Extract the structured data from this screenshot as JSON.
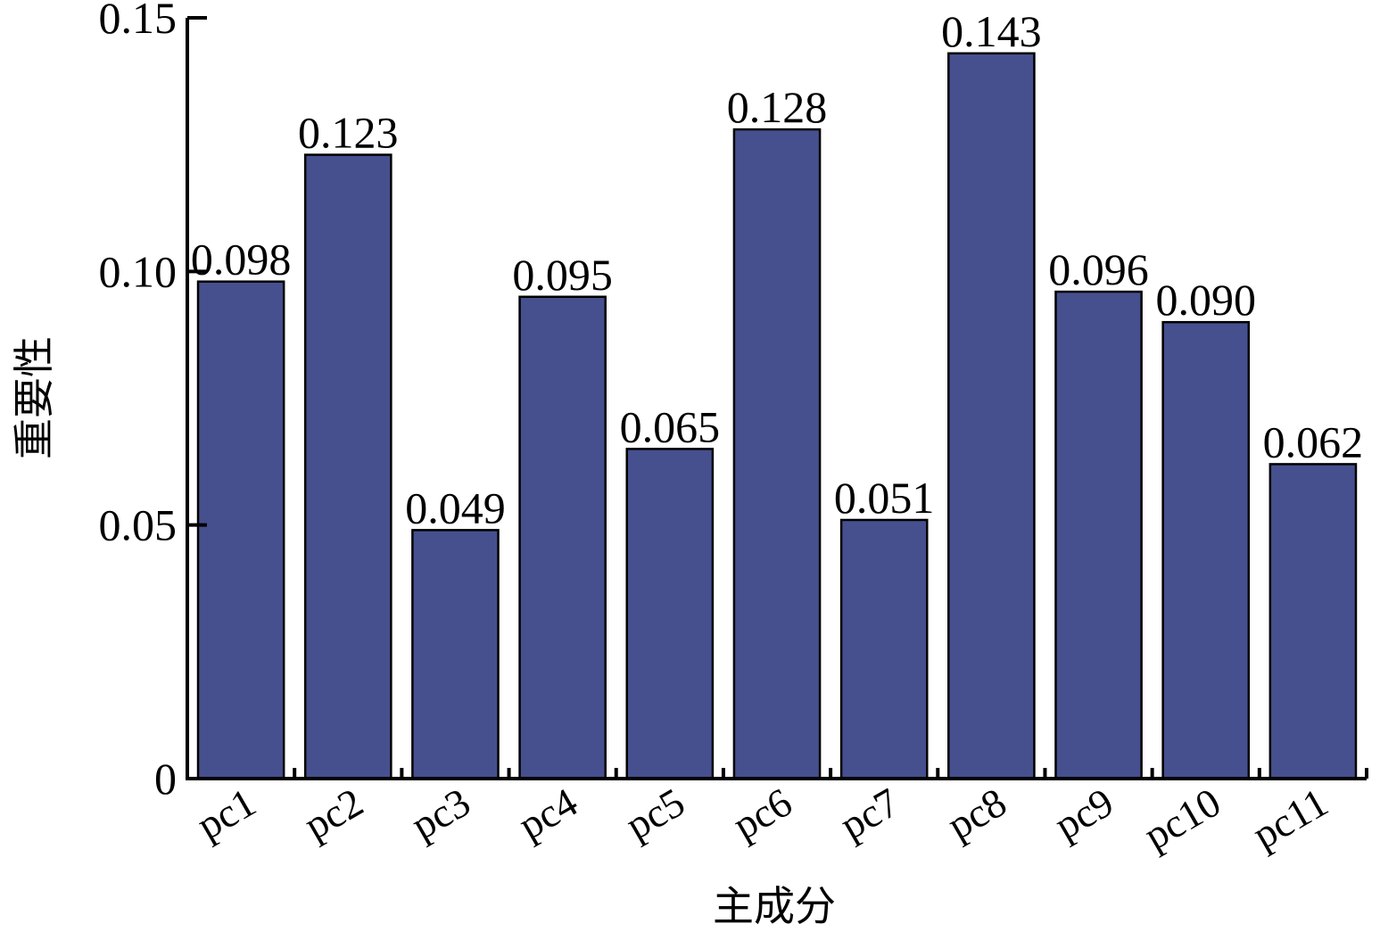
{
  "chart_data": {
    "type": "bar",
    "categories": [
      "pc1",
      "pc2",
      "pc3",
      "pc4",
      "pc5",
      "pc6",
      "pc7",
      "pc8",
      "pc9",
      "pc10",
      "pc11"
    ],
    "values": [
      0.098,
      0.123,
      0.049,
      0.095,
      0.065,
      0.128,
      0.051,
      0.143,
      0.096,
      0.09,
      0.062
    ],
    "value_labels": [
      "0.098",
      "0.123",
      "0.049",
      "0.095",
      "0.065",
      "0.128",
      "0.051",
      "0.143",
      "0.096",
      "0.090",
      "0.062"
    ],
    "xlabel": "主成分",
    "ylabel": "重要性",
    "ylim": [
      0,
      0.15
    ],
    "yticks": [
      0,
      0.05,
      0.1,
      0.15
    ],
    "ytick_labels": [
      "0",
      "0.05",
      "0.10",
      "0.15"
    ],
    "bar_color": "#46508f",
    "grid": false,
    "legend": "none"
  }
}
